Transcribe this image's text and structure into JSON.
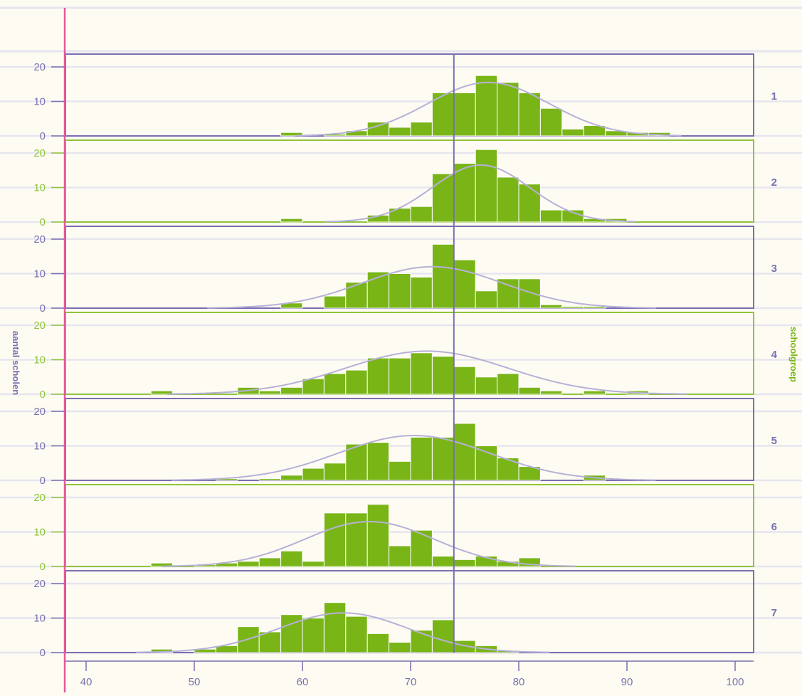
{
  "chart_data": {
    "type": "bar",
    "subtype": "faceted-histogram",
    "ylabel": "aantal scholen",
    "facet_label": "schoolgroep",
    "xlim": [
      38,
      102
    ],
    "ylim": [
      0,
      23
    ],
    "x_ticks": [
      40,
      50,
      60,
      70,
      80,
      90,
      100
    ],
    "y_ticks": [
      0,
      10,
      20
    ],
    "bin_width": 2,
    "bin_starts": [
      46,
      48,
      50,
      52,
      54,
      56,
      58,
      60,
      62,
      64,
      66,
      68,
      70,
      72,
      74,
      76,
      78,
      80,
      82,
      84,
      86,
      88,
      90,
      92
    ],
    "reference_line_x": 74,
    "grid": true,
    "colors": {
      "background": "#fefcf2",
      "bars": "#7ab518",
      "bar_edge": "#ffffff",
      "panel_odd": "#7a6fb0",
      "panel_even": "#8fc43a",
      "density_curve": "#b7b0d8",
      "reference_line": "#7a6fb0",
      "left_axis_line": "#e05a9a",
      "gridline": "#e6e5f0",
      "facet_label": "#7a6fb0",
      "facet_title": "#7ab518"
    },
    "series": [
      {
        "name": "1",
        "values": [
          0,
          0,
          0,
          0,
          0,
          0,
          1,
          0,
          0.5,
          1.5,
          4,
          2.5,
          4,
          12.5,
          12.5,
          17.5,
          15.5,
          12.5,
          8,
          2,
          3,
          1.5,
          1,
          1
        ],
        "normal": {
          "mean": 77.2,
          "sd": 5.6,
          "peak": 15.5
        }
      },
      {
        "name": "2",
        "values": [
          0,
          0,
          0,
          0,
          0,
          0,
          1,
          0,
          0,
          0,
          2,
          4,
          4.5,
          14,
          17,
          21,
          13,
          11,
          3.5,
          3.5,
          1,
          1,
          0,
          0
        ],
        "normal": {
          "mean": 76.5,
          "sd": 4.5,
          "peak": 16.5
        }
      },
      {
        "name": "3",
        "values": [
          0,
          0,
          0,
          0,
          0,
          0,
          1.5,
          0,
          3.5,
          7.5,
          10.5,
          10,
          9,
          18.5,
          14,
          5,
          8.5,
          8.5,
          1,
          0.5,
          0.5,
          0,
          0,
          0
        ],
        "normal": {
          "mean": 72,
          "sd": 6.5,
          "peak": 12
        }
      },
      {
        "name": "4",
        "values": [
          1,
          0,
          0,
          0,
          2,
          1,
          2,
          4.5,
          6,
          7,
          10.5,
          10.5,
          12,
          11,
          8,
          5,
          6,
          2,
          1,
          0,
          1,
          0,
          1,
          0
        ],
        "normal": {
          "mean": 71.5,
          "sd": 7.5,
          "peak": 12.5
        }
      },
      {
        "name": "5",
        "values": [
          0,
          0,
          0,
          0.5,
          0,
          0.5,
          1.5,
          3.5,
          5,
          10.5,
          11,
          5.5,
          12.5,
          12.5,
          16.5,
          10,
          6.5,
          4,
          0,
          0,
          1.5,
          0,
          0,
          0
        ],
        "normal": {
          "mean": 70.3,
          "sd": 7,
          "peak": 13
        }
      },
      {
        "name": "6",
        "values": [
          1,
          0,
          0.5,
          1,
          1.5,
          2.5,
          4.5,
          1.5,
          15.5,
          15.5,
          18,
          6,
          10.5,
          3,
          2,
          3,
          1.5,
          2.5,
          0,
          0,
          0,
          0,
          0,
          0
        ],
        "normal": {
          "mean": 66.2,
          "sd": 6,
          "peak": 13
        }
      },
      {
        "name": "7",
        "values": [
          1,
          0,
          1,
          2,
          7.5,
          6,
          11,
          10,
          14.5,
          10.5,
          5.5,
          3,
          6.5,
          9.5,
          3.5,
          2,
          0.5,
          0,
          0,
          0,
          0,
          0,
          0,
          0
        ],
        "normal": {
          "mean": 63.8,
          "sd": 6,
          "peak": 11.5
        }
      }
    ]
  }
}
